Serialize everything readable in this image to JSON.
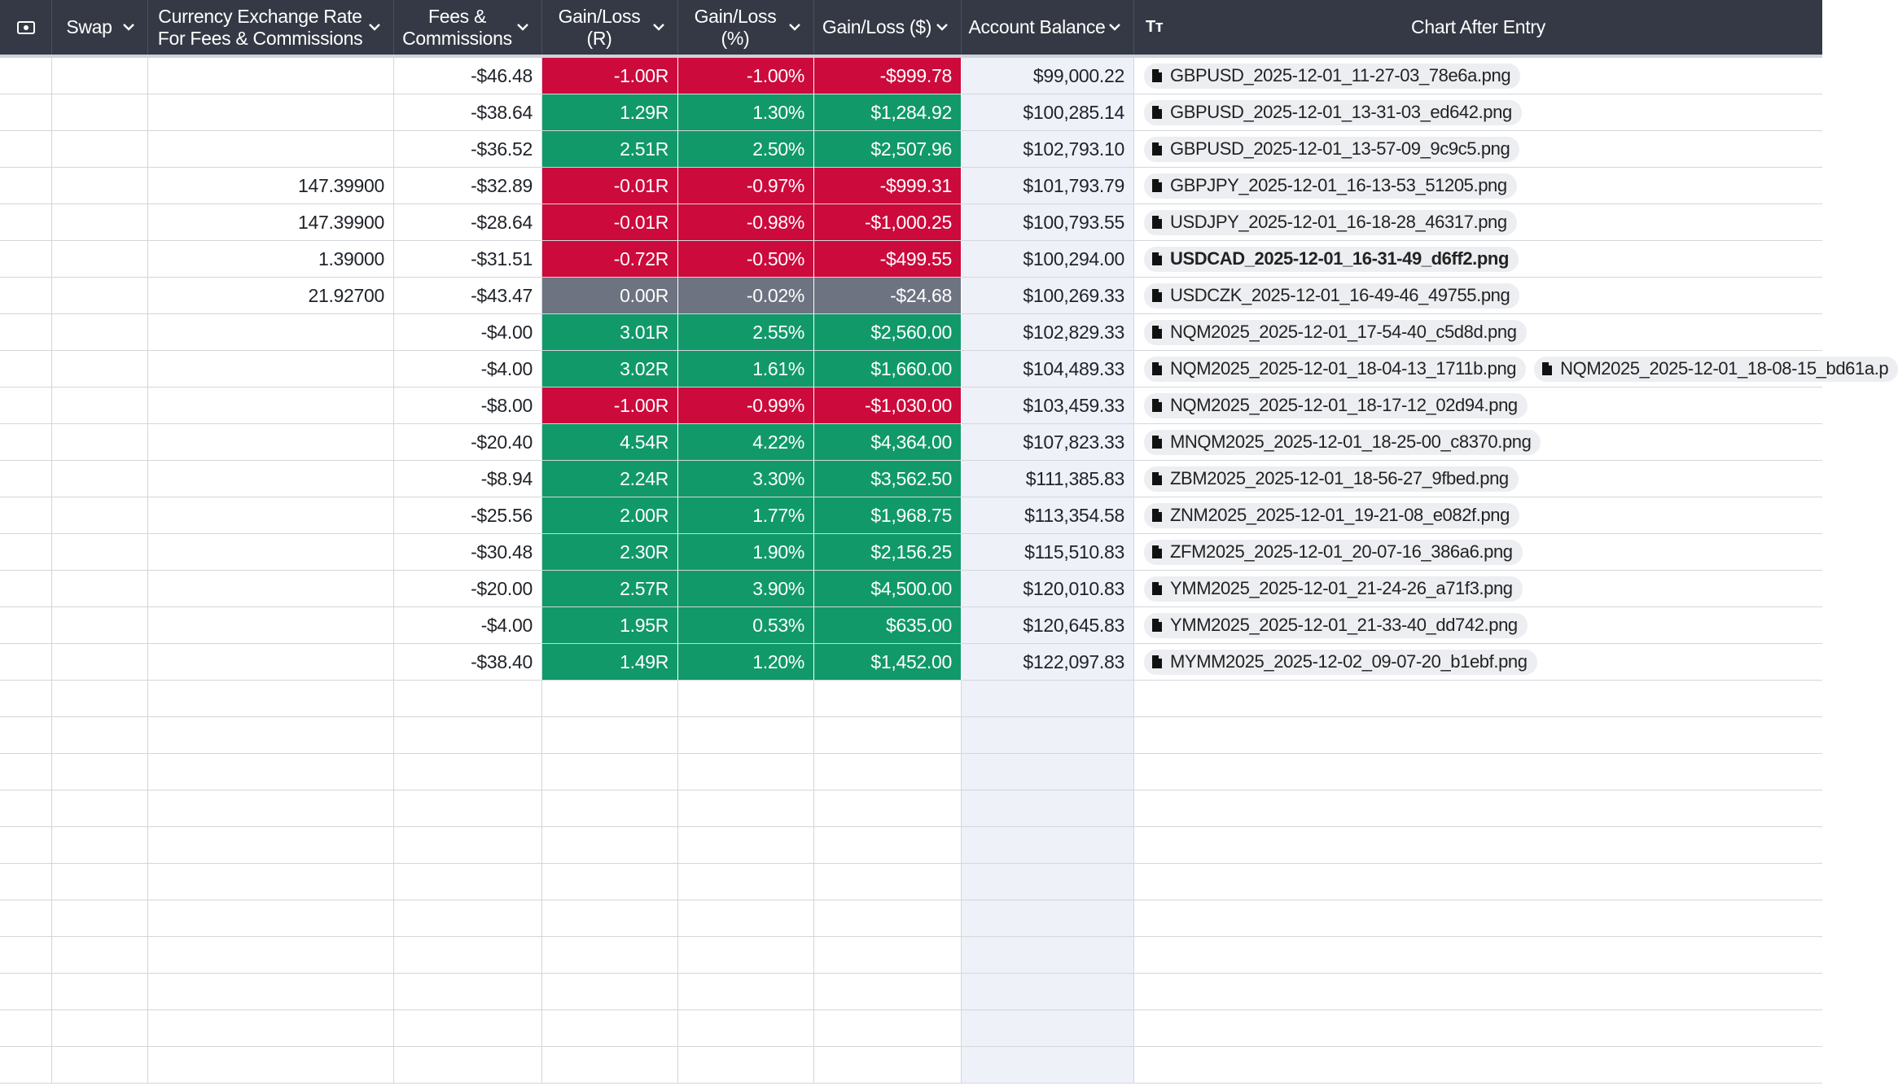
{
  "header": {
    "icon": "card-icon",
    "columns": [
      {
        "label": "Swap"
      },
      {
        "label": "Currency Exchange Rate\nFor Fees & Commissions"
      },
      {
        "label": "Fees &\nCommissions"
      },
      {
        "label": "Gain/Loss\n(R)"
      },
      {
        "label": "Gain/Loss\n(%)"
      },
      {
        "label": "Gain/Loss ($)"
      },
      {
        "label": "Account Balance"
      },
      {
        "label": "Chart After Entry",
        "type_icon": "Tт"
      }
    ]
  },
  "colors": {
    "header_bg": "#343945",
    "loss": "#cc0a3c",
    "gain": "#11996a",
    "flat": "#6e7381",
    "balance_bg": "#eef1f8"
  },
  "rows": [
    {
      "swap": "",
      "rate": "",
      "fees": "-$46.48",
      "r": "-1.00R",
      "pct": "-1.00%",
      "usd": "-$999.78",
      "status": "red",
      "balance": "$99,000.22",
      "files": [
        "GBPUSD_2025-12-01_11-27-03_78e6a.png"
      ]
    },
    {
      "swap": "",
      "rate": "",
      "fees": "-$38.64",
      "r": "1.29R",
      "pct": "1.30%",
      "usd": "$1,284.92",
      "status": "green",
      "balance": "$100,285.14",
      "files": [
        "GBPUSD_2025-12-01_13-31-03_ed642.png"
      ]
    },
    {
      "swap": "",
      "rate": "",
      "fees": "-$36.52",
      "r": "2.51R",
      "pct": "2.50%",
      "usd": "$2,507.96",
      "status": "green",
      "balance": "$102,793.10",
      "files": [
        "GBPUSD_2025-12-01_13-57-09_9c9c5.png"
      ]
    },
    {
      "swap": "",
      "rate": "147.39900",
      "fees": "-$32.89",
      "r": "-0.01R",
      "pct": "-0.97%",
      "usd": "-$999.31",
      "status": "red",
      "balance": "$101,793.79",
      "files": [
        "GBPJPY_2025-12-01_16-13-53_51205.png"
      ]
    },
    {
      "swap": "",
      "rate": "147.39900",
      "fees": "-$28.64",
      "r": "-0.01R",
      "pct": "-0.98%",
      "usd": "-$1,000.25",
      "status": "red",
      "balance": "$100,793.55",
      "files": [
        "USDJPY_2025-12-01_16-18-28_46317.png"
      ]
    },
    {
      "swap": "",
      "rate": "1.39000",
      "fees": "-$31.51",
      "r": "-0.72R",
      "pct": "-0.50%",
      "usd": "-$499.55",
      "status": "red",
      "balance": "$100,294.00",
      "files": [
        "USDCAD_2025-12-01_16-31-49_d6ff2.png"
      ],
      "bold": true
    },
    {
      "swap": "",
      "rate": "21.92700",
      "fees": "-$43.47",
      "r": "0.00R",
      "pct": "-0.02%",
      "usd": "-$24.68",
      "status": "gray",
      "balance": "$100,269.33",
      "files": [
        "USDCZK_2025-12-01_16-49-46_49755.png"
      ]
    },
    {
      "swap": "",
      "rate": "",
      "fees": "-$4.00",
      "r": "3.01R",
      "pct": "2.55%",
      "usd": "$2,560.00",
      "status": "green",
      "balance": "$102,829.33",
      "files": [
        "NQM2025_2025-12-01_17-54-40_c5d8d.png"
      ]
    },
    {
      "swap": "",
      "rate": "",
      "fees": "-$4.00",
      "r": "3.02R",
      "pct": "1.61%",
      "usd": "$1,660.00",
      "status": "green",
      "balance": "$104,489.33",
      "files": [
        "NQM2025_2025-12-01_18-04-13_1711b.png",
        "NQM2025_2025-12-01_18-08-15_bd61a.p"
      ]
    },
    {
      "swap": "",
      "rate": "",
      "fees": "-$8.00",
      "r": "-1.00R",
      "pct": "-0.99%",
      "usd": "-$1,030.00",
      "status": "red",
      "balance": "$103,459.33",
      "files": [
        "NQM2025_2025-12-01_18-17-12_02d94.png"
      ]
    },
    {
      "swap": "",
      "rate": "",
      "fees": "-$20.40",
      "r": "4.54R",
      "pct": "4.22%",
      "usd": "$4,364.00",
      "status": "green",
      "balance": "$107,823.33",
      "files": [
        "MNQM2025_2025-12-01_18-25-00_c8370.png"
      ]
    },
    {
      "swap": "",
      "rate": "",
      "fees": "-$8.94",
      "r": "2.24R",
      "pct": "3.30%",
      "usd": "$3,562.50",
      "status": "green",
      "balance": "$111,385.83",
      "files": [
        "ZBM2025_2025-12-01_18-56-27_9fbed.png"
      ]
    },
    {
      "swap": "",
      "rate": "",
      "fees": "-$25.56",
      "r": "2.00R",
      "pct": "1.77%",
      "usd": "$1,968.75",
      "status": "green",
      "balance": "$113,354.58",
      "files": [
        "ZNM2025_2025-12-01_19-21-08_e082f.png"
      ]
    },
    {
      "swap": "",
      "rate": "",
      "fees": "-$30.48",
      "r": "2.30R",
      "pct": "1.90%",
      "usd": "$2,156.25",
      "status": "green",
      "balance": "$115,510.83",
      "files": [
        "ZFM2025_2025-12-01_20-07-16_386a6.png"
      ]
    },
    {
      "swap": "",
      "rate": "",
      "fees": "-$20.00",
      "r": "2.57R",
      "pct": "3.90%",
      "usd": "$4,500.00",
      "status": "green",
      "balance": "$120,010.83",
      "files": [
        "YMM2025_2025-12-01_21-24-26_a71f3.png"
      ]
    },
    {
      "swap": "",
      "rate": "",
      "fees": "-$4.00",
      "r": "1.95R",
      "pct": "0.53%",
      "usd": "$635.00",
      "status": "green",
      "balance": "$120,645.83",
      "files": [
        "YMM2025_2025-12-01_21-33-40_dd742.png"
      ]
    },
    {
      "swap": "",
      "rate": "",
      "fees": "-$38.40",
      "r": "1.49R",
      "pct": "1.20%",
      "usd": "$1,452.00",
      "status": "green",
      "balance": "$122,097.83",
      "files": [
        "MYMM2025_2025-12-02_09-07-20_b1ebf.png"
      ]
    }
  ],
  "empty_rows": 11
}
